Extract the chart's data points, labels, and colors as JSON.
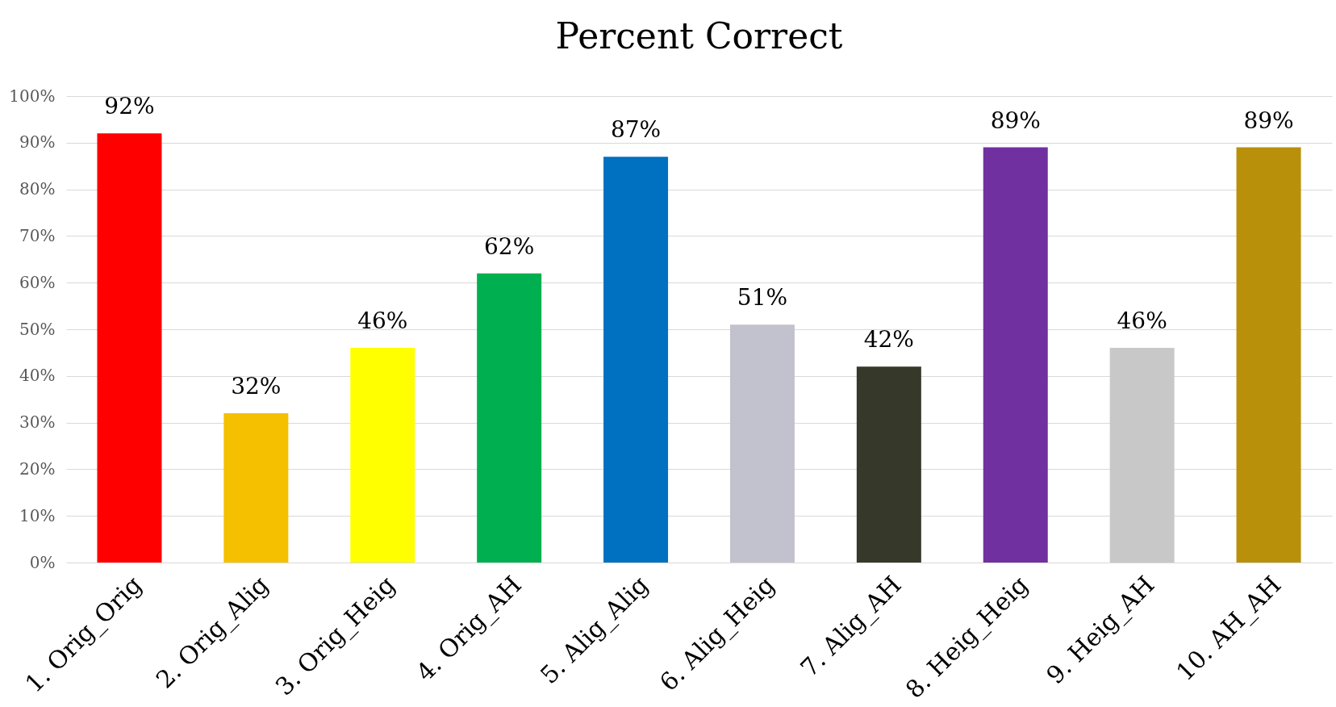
{
  "chart_data": {
    "type": "bar",
    "title": "Percent Correct",
    "categories": [
      "1. Orig_Orig",
      "2. Orig_Alig",
      "3. Orig_Heig",
      "4. Orig_AH",
      "5. Alig_Alig",
      "6. Alig_Heig",
      "7. Alig_AH",
      "8. Heig_Heig",
      "9. Heig_AH",
      "10. AH_AH"
    ],
    "values": [
      92,
      32,
      46,
      62,
      87,
      51,
      42,
      89,
      46,
      89
    ],
    "value_labels": [
      "92%",
      "32%",
      "46%",
      "62%",
      "87%",
      "51%",
      "42%",
      "89%",
      "46%",
      "89%"
    ],
    "colors": [
      "#ff0000",
      "#f5c000",
      "#ffff00",
      "#00b050",
      "#0070c0",
      "#c2c2ce",
      "#36382a",
      "#7030a0",
      "#c8c8c8",
      "#b8900a"
    ],
    "ylim": [
      0,
      100
    ],
    "yticks": [
      {
        "value": 0,
        "label": "0%"
      },
      {
        "value": 10,
        "label": "10%"
      },
      {
        "value": 20,
        "label": "20%"
      },
      {
        "value": 30,
        "label": "30%"
      },
      {
        "value": 40,
        "label": "40%"
      },
      {
        "value": 50,
        "label": "50%"
      },
      {
        "value": 60,
        "label": "60%"
      },
      {
        "value": 70,
        "label": "70%"
      },
      {
        "value": 80,
        "label": "80%"
      },
      {
        "value": 90,
        "label": "90%"
      },
      {
        "value": 100,
        "label": "100%"
      }
    ],
    "grid": "y"
  }
}
